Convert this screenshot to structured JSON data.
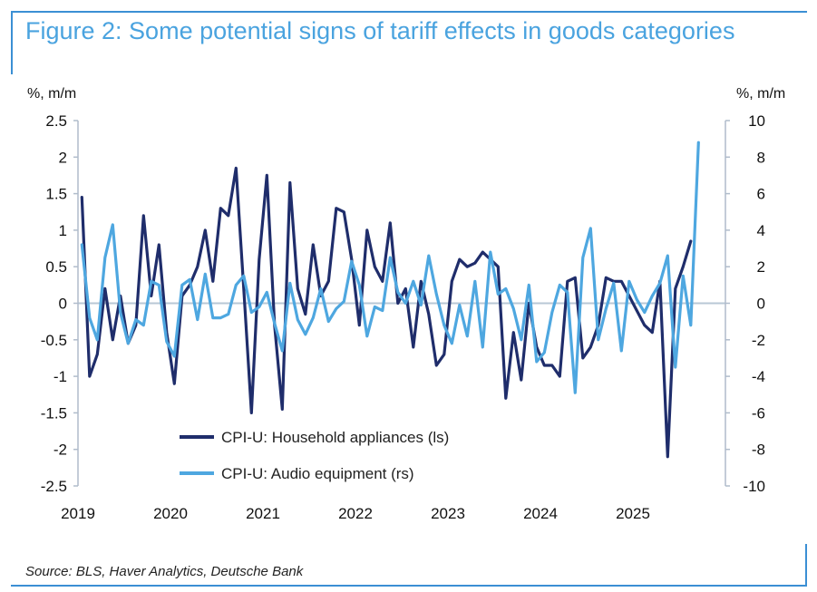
{
  "title": "Figure 2: Some potential signs of tariff effects in goods categories",
  "source": "Source: BLS, Haver Analytics, Deutsche Bank",
  "colors": {
    "accent": "#3b8fd4",
    "appliances": "#1f2d6b",
    "audio": "#4ea7e0",
    "zero_line": "#b8c7d6"
  },
  "chart_data": {
    "type": "line",
    "left_axis": {
      "label": "%, m/m",
      "ylim": [
        -2.5,
        2.5
      ],
      "ticks": [
        "2.5",
        "2",
        "1.5",
        "1",
        "0.5",
        "0",
        "-0.5",
        "-1",
        "-1.5",
        "-2",
        "-2.5"
      ]
    },
    "right_axis": {
      "label": "%, m/m",
      "ylim": [
        -10,
        10
      ],
      "ticks": [
        "10",
        "8",
        "6",
        "4",
        "2",
        "0",
        "-2",
        "-4",
        "-6",
        "-8",
        "-10"
      ]
    },
    "x_ticks": [
      "2019",
      "2020",
      "2021",
      "2022",
      "2023",
      "2024",
      "2025"
    ],
    "x_start": "2019-01",
    "x_end": "2025-12",
    "series": [
      {
        "name": "CPI-U: Household appliances (ls)",
        "axis": "left",
        "values": [
          1.45,
          -1.0,
          -0.7,
          0.2,
          -0.5,
          0.1,
          -0.55,
          -0.3,
          1.2,
          0.1,
          0.8,
          -0.4,
          -1.1,
          0.1,
          0.25,
          0.5,
          1.0,
          0.3,
          1.3,
          1.2,
          1.85,
          0.2,
          -1.5,
          0.6,
          1.75,
          -0.3,
          -1.45,
          1.65,
          0.2,
          -0.15,
          0.8,
          0.1,
          0.3,
          1.3,
          1.25,
          0.6,
          -0.3,
          1.0,
          0.5,
          0.3,
          1.1,
          0.0,
          0.2,
          -0.6,
          0.3,
          -0.15,
          -0.85,
          -0.7,
          0.3,
          0.6,
          0.5,
          0.55,
          0.7,
          0.6,
          0.5,
          -1.3,
          -0.4,
          -1.05,
          0.0,
          -0.6,
          -0.85,
          -0.85,
          -1.0,
          0.3,
          0.35,
          -0.75,
          -0.6,
          -0.3,
          0.35,
          0.3,
          0.3,
          0.1,
          -0.1,
          -0.3,
          -0.4,
          0.3,
          -2.1,
          0.2,
          0.5,
          0.85
        ]
      },
      {
        "name": "CPI-U: Audio equipment (rs)",
        "axis": "right",
        "values": [
          3.2,
          -0.8,
          -2.0,
          2.5,
          4.3,
          -0.5,
          -2.2,
          -0.9,
          -1.2,
          1.2,
          1.0,
          -2.1,
          -2.9,
          1.0,
          1.3,
          -0.9,
          1.6,
          -0.8,
          -0.8,
          -0.6,
          1.0,
          1.5,
          -0.5,
          -0.2,
          0.6,
          -1.1,
          -2.6,
          1.1,
          -0.9,
          -1.7,
          -0.8,
          0.8,
          -1.0,
          -0.3,
          0.1,
          2.3,
          1.0,
          -1.8,
          -0.2,
          -0.4,
          2.5,
          0.6,
          0.0,
          1.2,
          -0.1,
          2.6,
          0.5,
          -1.2,
          -2.2,
          -0.1,
          -1.8,
          1.2,
          -2.4,
          2.8,
          0.5,
          0.8,
          -0.3,
          -2.0,
          1.0,
          -3.2,
          -2.7,
          -0.5,
          1.0,
          0.6,
          -4.9,
          2.5,
          4.1,
          -2.0,
          -0.3,
          1.1,
          -2.6,
          1.2,
          0.2,
          -0.5,
          0.4,
          1.1,
          2.6,
          -3.5,
          1.5,
          -1.2,
          8.8
        ]
      }
    ],
    "legend": {
      "placement": "bottom-center"
    },
    "grid": false
  }
}
